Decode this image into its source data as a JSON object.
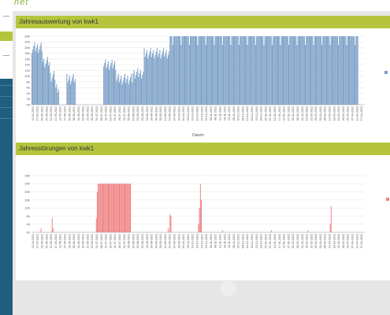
{
  "brand": {
    "logo_text": "net"
  },
  "panels": [
    {
      "title": "Jahresauswertung von kwk1",
      "chart_data": {
        "type": "bar",
        "xlabel": "Datum",
        "ylabel": "",
        "yticks": [
          "0h",
          "2h",
          "4h",
          "6h",
          "8h",
          "10h",
          "12h",
          "14h",
          "16h",
          "18h",
          "20h",
          "22h",
          "24h"
        ],
        "ylim": [
          0,
          24
        ],
        "series_color": "#7b9fc6",
        "xtick_labels": [
          "22-04-2021",
          "27-04-2021",
          "02-05-2021",
          "07-05-2021",
          "12-05-2021",
          "17-05-2021",
          "22-05-2021",
          "27-05-2021",
          "01-06-2021",
          "06-06-2021",
          "11-06-2021",
          "16-06-2021",
          "21-06-2021",
          "26-06-2021",
          "01-07-2021",
          "06-07-2021",
          "11-07-2021",
          "16-07-2021",
          "21-07-2021",
          "26-07-2021",
          "31-07-2021",
          "05-08-2021",
          "10-08-2021",
          "15-08-2021",
          "20-08-2021",
          "25-08-2021",
          "30-08-2021",
          "04-09-2021",
          "09-09-2021",
          "14-09-2021",
          "19-09-2021",
          "24-09-2021",
          "29-09-2021",
          "04-10-2021",
          "09-10-2021",
          "14-10-2021",
          "19-10-2021",
          "24-10-2021",
          "29-10-2021",
          "03-11-2021",
          "08-11-2021",
          "13-11-2021",
          "18-11-2021",
          "23-11-2021",
          "28-11-2021",
          "03-12-2021",
          "08-12-2021",
          "13-12-2021",
          "18-12-2021",
          "23-12-2021",
          "28-12-2021",
          "02-01-2022",
          "07-01-2022",
          "12-01-2022",
          "17-01-2022",
          "22-01-2022",
          "27-01-2022",
          "01-02-2022",
          "06-02-2022",
          "11-02-2022",
          "16-02-2022",
          "21-02-2022",
          "26-02-2022",
          "03-03-2022",
          "08-03-2022",
          "13-03-2022",
          "18-03-2022",
          "23-03-2022",
          "28-03-2022",
          "02-04-2022",
          "07-04-2022",
          "12-04-2022",
          "17-04-2022"
        ],
        "segments": [
          {
            "from": 0,
            "to": 12,
            "level": 20
          },
          {
            "from": 12,
            "to": 20,
            "level": 15
          },
          {
            "from": 20,
            "to": 26,
            "level": 10
          },
          {
            "from": 26,
            "to": 30,
            "level": 6
          },
          {
            "from": 30,
            "to": 38,
            "level": 0
          },
          {
            "from": 38,
            "to": 48,
            "level": 9
          },
          {
            "from": 48,
            "to": 78,
            "level": 0
          },
          {
            "from": 78,
            "to": 92,
            "level": 14
          },
          {
            "from": 92,
            "to": 110,
            "level": 9
          },
          {
            "from": 110,
            "to": 122,
            "level": 11
          },
          {
            "from": 122,
            "to": 150,
            "level": 18
          },
          {
            "from": 150,
            "to": 355,
            "level": 24
          }
        ],
        "days": 362
      }
    },
    {
      "title": "Jahresstörungen von kwk1",
      "chart_data": {
        "type": "bar",
        "xlabel": "",
        "ylabel": "",
        "yticks": [
          "0h",
          "4h",
          "8h",
          "12h",
          "16h",
          "20h",
          "24h",
          "28h"
        ],
        "ylim": [
          0,
          28
        ],
        "series_color": "#f08080",
        "xtick_labels": [
          "22-04-2021",
          "27-04-2021",
          "02-05-2021",
          "07-05-2021",
          "12-05-2021",
          "17-05-2021",
          "22-05-2021",
          "27-05-2021",
          "01-06-2021",
          "06-06-2021",
          "11-06-2021",
          "16-06-2021",
          "21-06-2021",
          "26-06-2021",
          "01-07-2021",
          "06-07-2021",
          "11-07-2021",
          "16-07-2021",
          "21-07-2021",
          "26-07-2021",
          "31-07-2021",
          "05-08-2021",
          "10-08-2021",
          "15-08-2021",
          "20-08-2021",
          "25-08-2021",
          "30-08-2021",
          "04-09-2021",
          "09-09-2021",
          "14-09-2021",
          "19-09-2021",
          "24-09-2021",
          "29-09-2021",
          "04-10-2021",
          "09-10-2021",
          "14-10-2021",
          "19-10-2021",
          "24-10-2021",
          "29-10-2021",
          "03-11-2021",
          "08-11-2021",
          "13-11-2021",
          "18-11-2021",
          "23-11-2021",
          "28-11-2021",
          "03-12-2021",
          "08-12-2021",
          "13-12-2021",
          "18-12-2021",
          "23-12-2021",
          "28-12-2021",
          "02-01-2022",
          "07-01-2022",
          "12-01-2022",
          "17-01-2022",
          "22-01-2022",
          "27-01-2022",
          "01-02-2022",
          "06-02-2022",
          "11-02-2022",
          "16-02-2022",
          "21-02-2022",
          "26-02-2022",
          "03-03-2022",
          "08-03-2022",
          "13-03-2022",
          "18-03-2022",
          "23-03-2022",
          "28-03-2022",
          "02-04-2022",
          "07-04-2022",
          "12-04-2022",
          "17-04-2022"
        ],
        "spikes": [
          {
            "day": 10,
            "value": 2
          },
          {
            "day": 22,
            "value": 7
          },
          {
            "day": 23,
            "value": 2
          },
          {
            "day": 70,
            "value": 7
          },
          {
            "day": 71,
            "value": 20
          },
          {
            "day": 148,
            "value": 2
          },
          {
            "day": 150,
            "value": 9
          },
          {
            "day": 151,
            "value": 8
          },
          {
            "day": 181,
            "value": 4
          },
          {
            "day": 182,
            "value": 12
          },
          {
            "day": 183,
            "value": 24
          },
          {
            "day": 184,
            "value": 16
          },
          {
            "day": 207,
            "value": 1
          },
          {
            "day": 260,
            "value": 1
          },
          {
            "day": 300,
            "value": 1
          },
          {
            "day": 324,
            "value": 4
          },
          {
            "day": 325,
            "value": 13
          }
        ],
        "block": {
          "from": 72,
          "to": 108,
          "value": 24
        },
        "days": 362
      }
    }
  ]
}
